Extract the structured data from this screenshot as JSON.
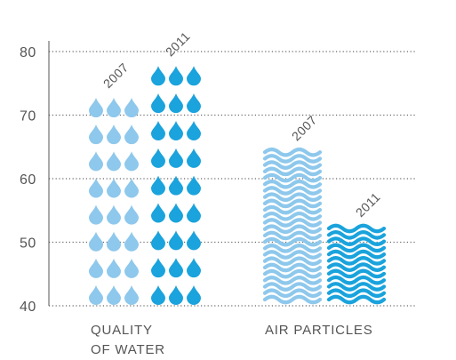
{
  "chart_data": {
    "type": "bar",
    "categories": [
      {
        "label_lines": [
          "QUALITY",
          "OF WATER"
        ],
        "glyph": "drop"
      },
      {
        "label_lines": [
          "AIR PARTICLES"
        ],
        "glyph": "wave"
      }
    ],
    "series": [
      {
        "name": "2007",
        "values": [
          73,
          65
        ],
        "color": "#8ec8ec"
      },
      {
        "name": "2011",
        "values": [
          78,
          53
        ],
        "color": "#1aa3dc"
      }
    ],
    "yticks": [
      40,
      50,
      60,
      70,
      80
    ],
    "ylim": [
      40,
      80
    ],
    "grid": true,
    "grid_style": "dotted",
    "axis_color": "#555555"
  }
}
